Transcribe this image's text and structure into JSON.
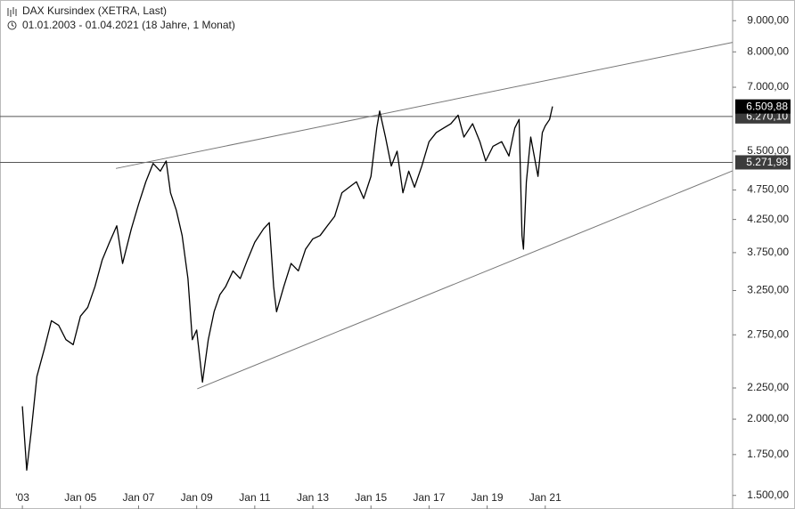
{
  "chart_data": {
    "type": "line",
    "title": "DAX Kursindex (XETRA, Last)",
    "subtitle": "01.01.2003 - 01.04.2021 (18 Jahre, 1 Monat)",
    "log_scale": true,
    "grid": false,
    "xlim": [
      2002.23,
      2027.45
    ],
    "ylim": [
      1425,
      9730
    ],
    "xticks": [
      {
        "value": 2003,
        "label": "'03"
      },
      {
        "value": 2005,
        "label": "Jan 05"
      },
      {
        "value": 2007,
        "label": "Jan 07"
      },
      {
        "value": 2009,
        "label": "Jan 09"
      },
      {
        "value": 2011,
        "label": "Jan 11"
      },
      {
        "value": 2013,
        "label": "Jan 13"
      },
      {
        "value": 2015,
        "label": "Jan 15"
      },
      {
        "value": 2017,
        "label": "Jan 17"
      },
      {
        "value": 2019,
        "label": "Jan 19"
      },
      {
        "value": 2021,
        "label": "Jan 21"
      }
    ],
    "yticks": [
      {
        "value": 9000,
        "label": "9.000,00"
      },
      {
        "value": 8000,
        "label": "8.000,00"
      },
      {
        "value": 7000,
        "label": "7.000,00"
      },
      {
        "value": 5500,
        "label": "5.500,00"
      },
      {
        "value": 4750,
        "label": "4.750,00"
      },
      {
        "value": 4250,
        "label": "4.250,00"
      },
      {
        "value": 3750,
        "label": "3.750,00"
      },
      {
        "value": 3250,
        "label": "3.250,00"
      },
      {
        "value": 2750,
        "label": "2.750,00"
      },
      {
        "value": 2250,
        "label": "2.250,00"
      },
      {
        "value": 2000,
        "label": "2.000,00"
      },
      {
        "value": 1750,
        "label": "1.750,00"
      },
      {
        "value": 1500,
        "label": "1.500,00"
      }
    ],
    "x": [
      2003.0,
      2003.15,
      2003.3,
      2003.5,
      2003.75,
      2004.0,
      2004.25,
      2004.5,
      2004.75,
      2005.0,
      2005.25,
      2005.5,
      2005.75,
      2006.0,
      2006.25,
      2006.45,
      2006.75,
      2007.0,
      2007.25,
      2007.5,
      2007.75,
      2007.95,
      2008.1,
      2008.3,
      2008.5,
      2008.7,
      2008.85,
      2009.0,
      2009.2,
      2009.4,
      2009.6,
      2009.8,
      2010.0,
      2010.25,
      2010.5,
      2010.75,
      2011.0,
      2011.3,
      2011.5,
      2011.65,
      2011.75,
      2012.0,
      2012.25,
      2012.5,
      2012.75,
      2013.0,
      2013.25,
      2013.5,
      2013.75,
      2014.0,
      2014.25,
      2014.5,
      2014.75,
      2015.0,
      2015.2,
      2015.3,
      2015.5,
      2015.7,
      2015.9,
      2016.1,
      2016.3,
      2016.5,
      2016.75,
      2017.0,
      2017.25,
      2017.5,
      2017.75,
      2018.0,
      2018.2,
      2018.5,
      2018.75,
      2018.95,
      2019.2,
      2019.5,
      2019.75,
      2019.95,
      2020.1,
      2020.2,
      2020.25,
      2020.35,
      2020.5,
      2020.75,
      2020.9,
      2021.0,
      2021.15,
      2021.25
    ],
    "series": [
      {
        "color": "#000000",
        "values": [
          2100,
          1650,
          1900,
          2350,
          2600,
          2900,
          2850,
          2700,
          2650,
          2950,
          3050,
          3300,
          3650,
          3900,
          4150,
          3600,
          4100,
          4500,
          4900,
          5250,
          5100,
          5300,
          4700,
          4400,
          4000,
          3400,
          2700,
          2800,
          2300,
          2700,
          3000,
          3200,
          3300,
          3500,
          3400,
          3650,
          3900,
          4100,
          4200,
          3300,
          3000,
          3300,
          3600,
          3500,
          3800,
          3950,
          4000,
          4150,
          4300,
          4700,
          4800,
          4900,
          4600,
          5000,
          6000,
          6400,
          5800,
          5200,
          5500,
          4700,
          5100,
          4800,
          5200,
          5700,
          5900,
          6000,
          6100,
          6300,
          5800,
          6100,
          5700,
          5300,
          5600,
          5700,
          5400,
          6000,
          6200,
          4000,
          3800,
          4900,
          5800,
          5000,
          5900,
          6050,
          6200,
          6509.88
        ]
      }
    ],
    "last_value_label": "6.509,88",
    "reference_lines": [
      {
        "value": 6270.1,
        "label": "6.270,10"
      },
      {
        "value": 5271.98,
        "label": "5.271,98"
      }
    ],
    "trendlines": [
      {
        "x": [
          2006.22,
          2027.45
        ],
        "values": [
          5152,
          8292
        ]
      },
      {
        "x": [
          2009.02,
          2027.45
        ],
        "values": [
          2243,
          5107
        ]
      }
    ]
  }
}
